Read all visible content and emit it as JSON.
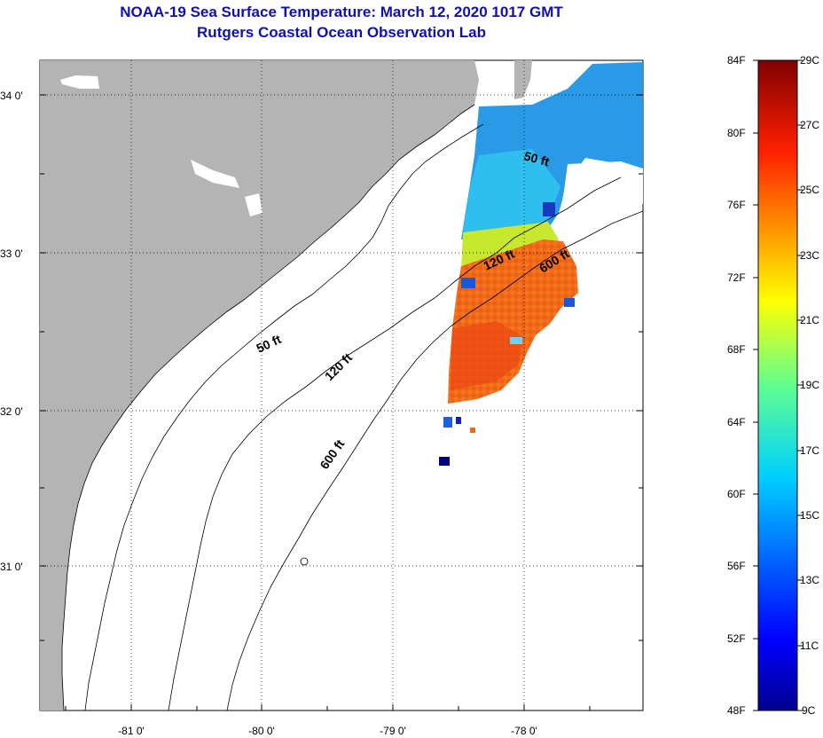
{
  "titles": {
    "line1": "NOAA-19 Sea Surface Temperature:  March 12, 2020 1017 GMT",
    "line2": "Rutgers Coastal Ocean Observation Lab"
  },
  "axes": {
    "lat_labels": [
      "34 0'",
      "33 0'",
      "32 0'",
      "31 0'"
    ],
    "lon_labels": [
      "-81 0'",
      "-80 0'",
      "-79 0'",
      "-78 0'"
    ]
  },
  "isobath_labels": {
    "shallow": "50 ft",
    "mid": "120 ft",
    "deep": "600 ft"
  },
  "colorbar": {
    "fahrenheit": [
      "84F",
      "80F",
      "76F",
      "72F",
      "68F",
      "64F",
      "60F",
      "56F",
      "52F",
      "48F"
    ],
    "celsius": [
      "29C",
      "27C",
      "25C",
      "23C",
      "21C",
      "19C",
      "17C",
      "15C",
      "13C",
      "11C",
      "9C"
    ]
  },
  "colors": {
    "land": "#b4b4b4",
    "title": "#1010b0",
    "warm_sst": "#f06a1a",
    "cool_sst": "#1aa8e8"
  }
}
